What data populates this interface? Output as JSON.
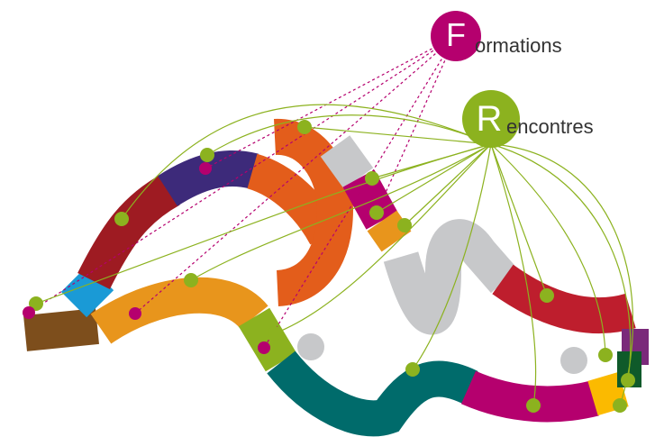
{
  "nodes": [
    {
      "initial": "F",
      "rest": "ormations"
    },
    {
      "initial": "R",
      "rest": "encontres"
    }
  ]
}
